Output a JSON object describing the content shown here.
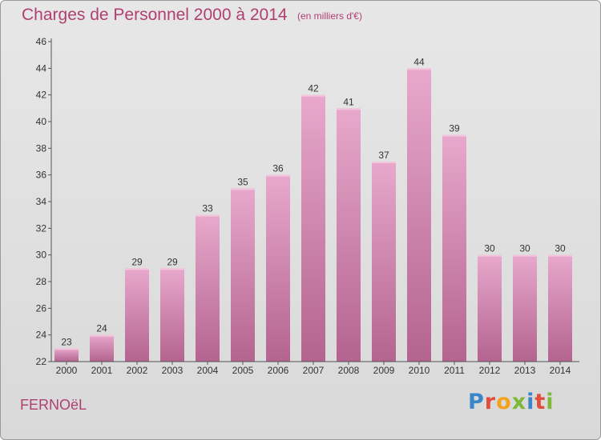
{
  "header": {
    "title": "Charges de Personnel 2000 à 2014",
    "subtitle": "(en milliers d'€)"
  },
  "footer": {
    "commune": "FERNOëL",
    "logo_letters": [
      "P",
      "r",
      "o",
      "x",
      "i",
      "t",
      "i"
    ]
  },
  "colors": {
    "title": "#b0406f",
    "bar_light": "#e8a8cc",
    "bar_dark": "#b3648f",
    "background": "#dedede"
  },
  "chart_data": {
    "type": "bar",
    "title": "Charges de Personnel 2000 à 2014",
    "subtitle": "(en milliers d'€)",
    "xlabel": "",
    "ylabel": "",
    "categories": [
      "2000",
      "2001",
      "2002",
      "2003",
      "2004",
      "2005",
      "2006",
      "2007",
      "2008",
      "2009",
      "2010",
      "2011",
      "2012",
      "2013",
      "2014"
    ],
    "values": [
      23,
      24,
      29,
      29,
      33,
      35,
      36,
      42,
      41,
      37,
      44,
      39,
      30,
      30,
      30
    ],
    "ylim": [
      22,
      46
    ],
    "yticks": [
      22,
      24,
      26,
      28,
      30,
      32,
      34,
      36,
      38,
      40,
      42,
      44,
      46
    ],
    "grid": false,
    "data_labels": true
  }
}
